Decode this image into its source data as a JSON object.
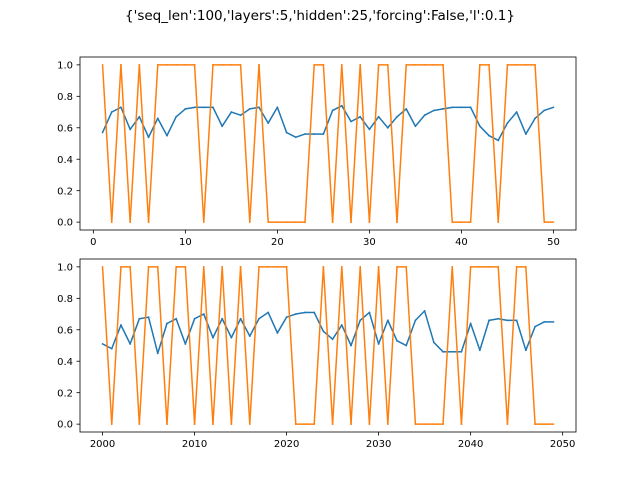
{
  "figure": {
    "title": "{'seq_len':100,'layers':5,'hidden':25,'forcing':False,'l':0.1}"
  },
  "colors": {
    "series_1": "#1f77b4",
    "series_2": "#ff7f0e",
    "axes": "#000000"
  },
  "chart_data": [
    {
      "type": "line",
      "title": "",
      "xlabel": "",
      "ylabel": "",
      "xlim": [
        -1.45,
        52.45
      ],
      "ylim": [
        -0.05,
        1.05
      ],
      "xticks": [
        0,
        10,
        20,
        30,
        40,
        50
      ],
      "yticks": [
        0.0,
        0.2,
        0.4,
        0.6,
        0.8,
        1.0
      ],
      "xtick_labels": [
        "0",
        "10",
        "20",
        "30",
        "40",
        "50"
      ],
      "ytick_labels": [
        "0.0",
        "0.2",
        "0.4",
        "0.6",
        "0.8",
        "1.0"
      ],
      "grid": false,
      "legend": "none",
      "x": [
        1,
        2,
        3,
        4,
        5,
        6,
        7,
        8,
        9,
        10,
        11,
        12,
        13,
        14,
        15,
        16,
        17,
        18,
        19,
        20,
        21,
        22,
        23,
        24,
        25,
        26,
        27,
        28,
        29,
        30,
        31,
        32,
        33,
        34,
        35,
        36,
        37,
        38,
        39,
        40,
        41,
        42,
        43,
        44,
        45,
        46,
        47,
        48,
        49,
        50
      ],
      "series": [
        {
          "color": "#1f77b4",
          "values": [
            0.57,
            0.7,
            0.73,
            0.59,
            0.67,
            0.54,
            0.66,
            0.55,
            0.67,
            0.72,
            0.73,
            0.73,
            0.73,
            0.61,
            0.7,
            0.68,
            0.72,
            0.73,
            0.63,
            0.73,
            0.57,
            0.54,
            0.56,
            0.56,
            0.56,
            0.71,
            0.74,
            0.64,
            0.67,
            0.59,
            0.67,
            0.6,
            0.67,
            0.72,
            0.61,
            0.68,
            0.71,
            0.72,
            0.73,
            0.73,
            0.73,
            0.61,
            0.55,
            0.52,
            0.63,
            0.7,
            0.56,
            0.66,
            0.71,
            0.73
          ]
        },
        {
          "color": "#ff7f0e",
          "values": [
            1,
            0,
            1,
            0,
            1,
            0,
            1,
            1,
            1,
            1,
            1,
            0,
            1,
            1,
            1,
            1,
            0,
            1,
            0,
            0,
            0,
            0,
            0,
            1,
            1,
            0,
            1,
            0,
            1,
            0,
            1,
            1,
            0,
            1,
            1,
            1,
            1,
            1,
            0,
            0,
            0,
            1,
            1,
            0,
            1,
            1,
            1,
            1,
            0,
            0
          ]
        }
      ]
    },
    {
      "type": "line",
      "title": "",
      "xlabel": "",
      "ylabel": "",
      "xlim": [
        1997.55,
        2051.45
      ],
      "ylim": [
        -0.05,
        1.05
      ],
      "xticks": [
        2000,
        2010,
        2020,
        2030,
        2040,
        2050
      ],
      "yticks": [
        0.0,
        0.2,
        0.4,
        0.6,
        0.8,
        1.0
      ],
      "xtick_labels": [
        "2000",
        "2010",
        "2020",
        "2030",
        "2040",
        "2050"
      ],
      "ytick_labels": [
        "0.0",
        "0.2",
        "0.4",
        "0.6",
        "0.8",
        "1.0"
      ],
      "grid": false,
      "legend": "none",
      "x": [
        2000,
        2001,
        2002,
        2003,
        2004,
        2005,
        2006,
        2007,
        2008,
        2009,
        2010,
        2011,
        2012,
        2013,
        2014,
        2015,
        2016,
        2017,
        2018,
        2019,
        2020,
        2021,
        2022,
        2023,
        2024,
        2025,
        2026,
        2027,
        2028,
        2029,
        2030,
        2031,
        2032,
        2033,
        2034,
        2035,
        2036,
        2037,
        2038,
        2039,
        2040,
        2041,
        2042,
        2043,
        2044,
        2045,
        2046,
        2047,
        2048,
        2049
      ],
      "series": [
        {
          "color": "#1f77b4",
          "values": [
            0.51,
            0.48,
            0.63,
            0.51,
            0.67,
            0.68,
            0.45,
            0.64,
            0.67,
            0.51,
            0.67,
            0.7,
            0.55,
            0.67,
            0.55,
            0.67,
            0.56,
            0.67,
            0.71,
            0.58,
            0.68,
            0.7,
            0.71,
            0.71,
            0.59,
            0.54,
            0.63,
            0.5,
            0.66,
            0.71,
            0.51,
            0.66,
            0.53,
            0.5,
            0.66,
            0.72,
            0.52,
            0.46,
            0.46,
            0.46,
            0.64,
            0.47,
            0.66,
            0.67,
            0.66,
            0.66,
            0.47,
            0.62,
            0.65,
            0.65
          ]
        },
        {
          "color": "#ff7f0e",
          "values": [
            1,
            0,
            1,
            1,
            0,
            1,
            1,
            0,
            1,
            1,
            0,
            1,
            0,
            1,
            0,
            1,
            0,
            1,
            1,
            1,
            1,
            0,
            0,
            0,
            1,
            0,
            1,
            0,
            1,
            0,
            1,
            0,
            1,
            1,
            0,
            0,
            0,
            0,
            1,
            0,
            1,
            1,
            1,
            1,
            0,
            1,
            1,
            0,
            0,
            0
          ]
        }
      ]
    }
  ]
}
